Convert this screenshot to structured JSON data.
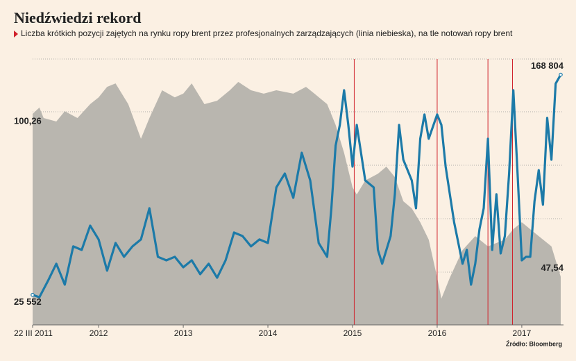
{
  "chart_data": {
    "type": "line",
    "title": "Niedźwiedzi rekord",
    "subtitle": "Liczba krótkich pozycji zajętych na rynku ropy brent przez profesjonalnych zarządzających (linia niebieska), na tle notowań ropy brent",
    "source": "Źródło: Bloomberg",
    "xlim": [
      2011.22,
      2017.46
    ],
    "xticks": [
      {
        "value": 2011.22,
        "label": "22 III 2011"
      },
      2012,
      2013,
      2014,
      2015,
      2016,
      2017
    ],
    "ylim": [
      32,
      118
    ],
    "y2lim": [
      6000,
      179000
    ],
    "vlines": [
      2015.02,
      2016.0,
      2016.6,
      2016.89
    ],
    "vline_color": "#d0212b",
    "series": [
      {
        "kind": "area",
        "color": "#b9b6af",
        "x": [
          2011.22,
          2011.3,
          2011.35,
          2011.5,
          2011.6,
          2011.75,
          2011.9,
          2012.0,
          2012.1,
          2012.2,
          2012.35,
          2012.5,
          2012.6,
          2012.75,
          2012.9,
          2013.0,
          2013.1,
          2013.25,
          2013.4,
          2013.55,
          2013.65,
          2013.8,
          2013.95,
          2014.1,
          2014.3,
          2014.45,
          2014.55,
          2014.7,
          2014.8,
          2014.9,
          2015.0,
          2015.05,
          2015.15,
          2015.3,
          2015.4,
          2015.5,
          2015.6,
          2015.7,
          2015.8,
          2015.9,
          2016.0,
          2016.05,
          2016.15,
          2016.3,
          2016.45,
          2016.6,
          2016.7,
          2016.8,
          2016.9,
          2017.0,
          2017.2,
          2017.35,
          2017.46
        ],
        "values": [
          100.26,
          102.3,
          98.9,
          97.8,
          101.1,
          98.9,
          103.4,
          105.6,
          109.0,
          110.1,
          103.4,
          92.2,
          98.9,
          107.9,
          105.6,
          106.8,
          110.1,
          103.4,
          104.5,
          107.9,
          110.6,
          107.9,
          106.8,
          107.9,
          106.8,
          109.0,
          106.8,
          103.4,
          96.7,
          87.7,
          76.5,
          74.2,
          78.7,
          80.9,
          83.2,
          79.8,
          72.0,
          69.7,
          65.2,
          59.6,
          47.3,
          40.5,
          47.3,
          56.2,
          60.7,
          57.4,
          58.5,
          59.6,
          63.0,
          65.2,
          60.7,
          57.4,
          47.54
        ],
        "value_labels": [
          "100,26",
          null,
          null,
          null,
          null,
          null,
          null,
          null,
          null,
          null,
          null,
          null,
          null,
          null,
          null,
          null,
          null,
          null,
          null,
          null,
          null,
          null,
          null,
          null,
          null,
          null,
          null,
          null,
          null,
          null,
          null,
          null,
          null,
          null,
          null,
          null,
          null,
          null,
          null,
          null,
          null,
          null,
          null,
          null,
          null,
          null,
          null,
          null,
          null,
          null,
          null,
          null,
          "47,54"
        ]
      },
      {
        "kind": "line",
        "axis": "y2",
        "color": "#1c7aa8",
        "x": [
          2011.22,
          2011.3,
          2011.4,
          2011.5,
          2011.6,
          2011.7,
          2011.8,
          2011.9,
          2012.0,
          2012.1,
          2012.2,
          2012.3,
          2012.4,
          2012.5,
          2012.6,
          2012.7,
          2012.8,
          2012.9,
          2013.0,
          2013.1,
          2013.2,
          2013.3,
          2013.4,
          2013.5,
          2013.6,
          2013.7,
          2013.8,
          2013.9,
          2014.0,
          2014.1,
          2014.2,
          2014.3,
          2014.4,
          2014.5,
          2014.6,
          2014.7,
          2014.75,
          2014.8,
          2014.85,
          2014.9,
          2014.95,
          2015.0,
          2015.05,
          2015.15,
          2015.25,
          2015.3,
          2015.35,
          2015.45,
          2015.5,
          2015.55,
          2015.6,
          2015.7,
          2015.75,
          2015.8,
          2015.85,
          2015.9,
          2016.0,
          2016.05,
          2016.1,
          2016.2,
          2016.3,
          2016.35,
          2016.4,
          2016.45,
          2016.5,
          2016.55,
          2016.6,
          2016.65,
          2016.7,
          2016.75,
          2016.8,
          2016.85,
          2016.9,
          2016.95,
          2017.0,
          2017.05,
          2017.1,
          2017.15,
          2017.2,
          2017.25,
          2017.3,
          2017.35,
          2017.4,
          2017.46
        ],
        "values": [
          25552,
          24000,
          34500,
          45800,
          32200,
          57100,
          54800,
          70600,
          61600,
          41300,
          59300,
          50300,
          57100,
          61600,
          81900,
          50300,
          48000,
          50300,
          43500,
          48000,
          39000,
          45800,
          36700,
          48000,
          66100,
          63800,
          57100,
          61600,
          59300,
          95500,
          104500,
          88700,
          118000,
          100000,
          59300,
          50300,
          81900,
          122600,
          136100,
          158700,
          136100,
          109000,
          136100,
          100000,
          95500,
          54800,
          45800,
          63800,
          91000,
          136100,
          113500,
          100000,
          81900,
          127100,
          142900,
          127100,
          142900,
          136100,
          109000,
          72900,
          45800,
          54800,
          32200,
          45800,
          68300,
          81900,
          127100,
          54800,
          91000,
          52500,
          63800,
          104500,
          158700,
          104500,
          48000,
          50300,
          50300,
          86400,
          106700,
          84200,
          140700,
          113500,
          163000,
          168804
        ],
        "value_labels": [
          "25 552",
          null,
          null,
          null,
          null,
          null,
          null,
          null,
          null,
          null,
          null,
          null,
          null,
          null,
          null,
          null,
          null,
          null,
          null,
          null,
          null,
          null,
          null,
          null,
          null,
          null,
          null,
          null,
          null,
          null,
          null,
          null,
          null,
          null,
          null,
          null,
          null,
          null,
          null,
          null,
          null,
          null,
          null,
          null,
          null,
          null,
          null,
          null,
          null,
          null,
          null,
          null,
          null,
          null,
          null,
          null,
          null,
          null,
          null,
          null,
          null,
          null,
          null,
          null,
          null,
          null,
          null,
          null,
          null,
          null,
          null,
          null,
          null,
          null,
          null,
          null,
          null,
          null,
          null,
          null,
          null,
          null,
          null,
          "168 804"
        ]
      }
    ]
  }
}
